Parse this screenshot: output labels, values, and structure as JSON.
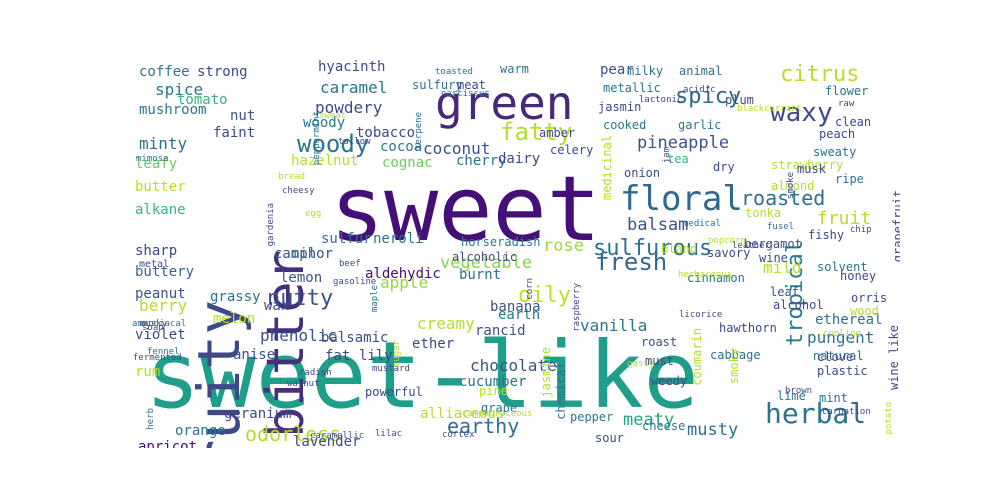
{
  "words": [
    {
      "text": "sweet-like",
      "color": "#1f9e89"
    },
    {
      "text": "sweet",
      "color": "#440f76"
    },
    {
      "text": "fruity",
      "color": "#3e4989"
    },
    {
      "text": "bitter",
      "color": "#46307e"
    },
    {
      "text": "green",
      "color": "#482979"
    },
    {
      "text": "floral",
      "color": "#31688e"
    },
    {
      "text": "herbal",
      "color": "#2c728e"
    },
    {
      "text": "fatty",
      "color": "#b5de2b"
    },
    {
      "text": "waxy",
      "color": "#3e4a89"
    },
    {
      "text": "woody",
      "color": "#2a788e"
    },
    {
      "text": "citrus",
      "color": "#b8de29"
    },
    {
      "text": "spicy",
      "color": "#31688e"
    },
    {
      "text": "fresh",
      "color": "#31688e"
    },
    {
      "text": "nutty",
      "color": "#3b528b"
    },
    {
      "text": "roasted",
      "color": "#2d708e"
    },
    {
      "text": "sulfurous",
      "color": "#2c728e"
    },
    {
      "text": "oily",
      "color": "#c2df23"
    },
    {
      "text": "earthy",
      "color": "#2c728e"
    },
    {
      "text": "odorless",
      "color": "#b5de2b"
    },
    {
      "text": "tropical",
      "color": "#297b8e"
    },
    {
      "text": "pineapple",
      "color": "#3b528b"
    },
    {
      "text": "balsam",
      "color": "#3b528b"
    },
    {
      "text": "fruit",
      "color": "#b5de2b"
    },
    {
      "text": "rose",
      "color": "#9bd93c"
    },
    {
      "text": "vegetable",
      "color": "#84d44b"
    },
    {
      "text": "musty",
      "color": "#2c728e"
    },
    {
      "text": "meaty",
      "color": "#20a386"
    },
    {
      "text": "creamy",
      "color": "#b5de2b"
    },
    {
      "text": "mild",
      "color": "#b5de2b"
    },
    {
      "text": "apple",
      "color": "#95d840"
    },
    {
      "text": "pungent",
      "color": "#2c728e"
    },
    {
      "text": "coconut",
      "color": "#3b528b"
    },
    {
      "text": "caramel",
      "color": "#2a788e"
    },
    {
      "text": "minty",
      "color": "#2c728e"
    },
    {
      "text": "spice",
      "color": "#2a788e"
    },
    {
      "text": "phenolic",
      "color": "#3b528b"
    },
    {
      "text": "berry",
      "color": "#b5de2b"
    },
    {
      "text": "vanilla",
      "color": "#2a788e"
    },
    {
      "text": "ethereal",
      "color": "#2c728e"
    },
    {
      "text": "chocolate",
      "color": "#3b528b"
    },
    {
      "text": "alliaceous",
      "color": "#b5de2b"
    },
    {
      "text": "powdery",
      "color": "#3e4a89"
    },
    {
      "text": "cucumber",
      "color": "#2c728e"
    },
    {
      "text": "hyacinth",
      "color": "#3e4a89"
    },
    {
      "text": "coffee",
      "color": "#2a788e"
    },
    {
      "text": "strong",
      "color": "#3e4a89"
    },
    {
      "text": "mushroom",
      "color": "#2a788e"
    },
    {
      "text": "tomato",
      "color": "#35b779"
    },
    {
      "text": "faint",
      "color": "#3e4a89"
    },
    {
      "text": "nut",
      "color": "#3b528b"
    },
    {
      "text": "hazelnut",
      "color": "#b5de2b"
    },
    {
      "text": "leafy",
      "color": "#6ccd5a"
    },
    {
      "text": "butter",
      "color": "#b5de2b"
    },
    {
      "text": "alkane",
      "color": "#35b779"
    },
    {
      "text": "sharp",
      "color": "#3e4a89"
    },
    {
      "text": "buttery",
      "color": "#31688e"
    },
    {
      "text": "grassy",
      "color": "#2c728e"
    },
    {
      "text": "peanut",
      "color": "#3b528b"
    },
    {
      "text": "melon",
      "color": "#b5de2b"
    },
    {
      "text": "violet",
      "color": "#3e4a89"
    },
    {
      "text": "anise",
      "color": "#3b528b"
    },
    {
      "text": "rum",
      "color": "#b5de2b"
    },
    {
      "text": "apricot",
      "color": "#440f76"
    },
    {
      "text": "orange",
      "color": "#2a788e"
    },
    {
      "text": "geranium",
      "color": "#3e4a89"
    },
    {
      "text": "lavender",
      "color": "#3e4a89"
    },
    {
      "text": "woody",
      "color": "#2a788e"
    },
    {
      "text": "cognac",
      "color": "#6ccd5a"
    },
    {
      "text": "cocoa",
      "color": "#2a788e"
    },
    {
      "text": "tobacco",
      "color": "#3e4a89"
    },
    {
      "text": "camphor",
      "color": "#3b528b"
    },
    {
      "text": "oil",
      "color": "#2a788e"
    },
    {
      "text": "sulfur",
      "color": "#2c728e"
    },
    {
      "text": "neroli",
      "color": "#2c728e"
    },
    {
      "text": "lemon",
      "color": "#3b528b"
    },
    {
      "text": "wax",
      "color": "#3e4a89"
    },
    {
      "text": "aldehydic",
      "color": "#440f76"
    },
    {
      "text": "balsamic",
      "color": "#3b528b"
    },
    {
      "text": "fat",
      "color": "#3e4a89"
    },
    {
      "text": "lily",
      "color": "#3e4a89"
    },
    {
      "text": "ether",
      "color": "#3e4a89"
    },
    {
      "text": "rancid",
      "color": "#3b528b"
    },
    {
      "text": "banana",
      "color": "#3b528b"
    },
    {
      "text": "earth",
      "color": "#2a788e"
    },
    {
      "text": "burnt",
      "color": "#2c728e"
    },
    {
      "text": "cherry",
      "color": "#2c728e"
    },
    {
      "text": "dairy",
      "color": "#3e4a89"
    },
    {
      "text": "sulfury",
      "color": "#2c728e"
    },
    {
      "text": "warm",
      "color": "#2a788e"
    },
    {
      "text": "meat",
      "color": "#3e4a89"
    },
    {
      "text": "pear",
      "color": "#3b528b"
    },
    {
      "text": "milky",
      "color": "#2c728e"
    },
    {
      "text": "animal",
      "color": "#2c728e"
    },
    {
      "text": "metallic",
      "color": "#2a788e"
    },
    {
      "text": "jasmin",
      "color": "#3e4a89"
    },
    {
      "text": "plum",
      "color": "#3e4a89"
    },
    {
      "text": "flower",
      "color": "#2c728e"
    },
    {
      "text": "clean",
      "color": "#3e4a89"
    },
    {
      "text": "peach",
      "color": "#3e4a89"
    },
    {
      "text": "cooked",
      "color": "#2a788e"
    },
    {
      "text": "amber",
      "color": "#3e4a89"
    },
    {
      "text": "garlic",
      "color": "#2a788e"
    },
    {
      "text": "sweaty",
      "color": "#2c728e"
    },
    {
      "text": "celery",
      "color": "#3e4a89"
    },
    {
      "text": "medicinal",
      "color": "#b5de2b"
    },
    {
      "text": "tea",
      "color": "#35b779"
    },
    {
      "text": "dry",
      "color": "#3e4a89"
    },
    {
      "text": "strawberry",
      "color": "#b5de2b"
    },
    {
      "text": "musk",
      "color": "#3e4a89"
    },
    {
      "text": "almond",
      "color": "#b5de2b"
    },
    {
      "text": "ripe",
      "color": "#2c728e"
    },
    {
      "text": "onion",
      "color": "#3e4a89"
    },
    {
      "text": "tonka",
      "color": "#b5de2b"
    },
    {
      "text": "fishy",
      "color": "#3e4a89"
    },
    {
      "text": "wine",
      "color": "#3e4a89"
    },
    {
      "text": "solvent",
      "color": "#2c728e"
    },
    {
      "text": "bergamot",
      "color": "#3e4a89"
    },
    {
      "text": "honey",
      "color": "#3e4a89"
    },
    {
      "text": "leaf",
      "color": "#3b528b"
    },
    {
      "text": "alcohol",
      "color": "#3e4a89"
    },
    {
      "text": "orris",
      "color": "#3e4a89"
    },
    {
      "text": "natural",
      "color": "#2c728e"
    },
    {
      "text": "wood",
      "color": "#b5de2b"
    },
    {
      "text": "cinnamon",
      "color": "#2c728e"
    },
    {
      "text": "hawthorn",
      "color": "#3e4a89"
    },
    {
      "text": "cabbage",
      "color": "#2c728e"
    },
    {
      "text": "clove",
      "color": "#3e4a89"
    },
    {
      "text": "plastic",
      "color": "#3e4a89"
    },
    {
      "text": "mint",
      "color": "#2c728e"
    },
    {
      "text": "lime",
      "color": "#2a788e"
    },
    {
      "text": "roast",
      "color": "#3e4a89"
    },
    {
      "text": "must",
      "color": "#3e4a89"
    },
    {
      "text": "weedy",
      "color": "#3e4a89"
    },
    {
      "text": "bland",
      "color": "#b5de2b"
    },
    {
      "text": "savory",
      "color": "#3e4a89"
    },
    {
      "text": "horseradish",
      "color": "#2a788e"
    },
    {
      "text": "alcoholic",
      "color": "#3e4a89"
    },
    {
      "text": "powerful",
      "color": "#3e4a89"
    },
    {
      "text": "pine",
      "color": "#b5de2b"
    },
    {
      "text": "grape",
      "color": "#2c728e"
    },
    {
      "text": "pepper",
      "color": "#2a788e"
    },
    {
      "text": "cheese",
      "color": "#2c728e"
    },
    {
      "text": "sour",
      "color": "#3e4a89"
    },
    {
      "text": "gassy",
      "color": "#b5de2b"
    },
    {
      "text": "sugar",
      "color": "#b5de2b"
    },
    {
      "text": "mustard",
      "color": "#3e4a89"
    },
    {
      "text": "lilac",
      "color": "#3e4a89"
    },
    {
      "text": "cortex",
      "color": "#3e4a89"
    },
    {
      "text": "camphoraceous",
      "color": "#b5de2b"
    },
    {
      "text": "caramellic",
      "color": "#3e4a89"
    },
    {
      "text": "walnut",
      "color": "#3e4a89"
    },
    {
      "text": "radish",
      "color": "#3e4a89"
    },
    {
      "text": "fennel",
      "color": "#2c728e"
    },
    {
      "text": "soap",
      "color": "#3e4a89"
    },
    {
      "text": "metal",
      "color": "#3e4a89"
    },
    {
      "text": "musky",
      "color": "#3e4a89"
    },
    {
      "text": "gasoline",
      "color": "#3e4a89"
    },
    {
      "text": "beef",
      "color": "#3e4a89"
    },
    {
      "text": "ammoniacal",
      "color": "#2c728e"
    },
    {
      "text": "fermented",
      "color": "#3e4a89"
    },
    {
      "text": "licorice",
      "color": "#3e4a89"
    },
    {
      "text": "cooling",
      "color": "#b5de2b"
    },
    {
      "text": "brown",
      "color": "#3e4a89"
    },
    {
      "text": "carnation",
      "color": "#3e4a89"
    },
    {
      "text": "medicine",
      "color": "#b5de2b"
    },
    {
      "text": "herbaceous",
      "color": "#b5de2b"
    },
    {
      "text": "popcorn",
      "color": "#b5de2b"
    },
    {
      "text": "leather",
      "color": "#3e4a89"
    },
    {
      "text": "medical",
      "color": "#2c728e"
    },
    {
      "text": "fusel",
      "color": "#2c728e"
    },
    {
      "text": "chip",
      "color": "#3e4a89"
    },
    {
      "text": "lactonic",
      "color": "#3e4a89"
    },
    {
      "text": "acidic",
      "color": "#3e4a89"
    },
    {
      "text": "raw",
      "color": "#3e4a89"
    },
    {
      "text": "blackcurrant",
      "color": "#b5de2b"
    },
    {
      "text": "toasted",
      "color": "#2c728e"
    },
    {
      "text": "narcissus",
      "color": "#2c728e"
    },
    {
      "text": "sweat",
      "color": "#b5de2b"
    },
    {
      "text": "tallow",
      "color": "#3e4a89"
    },
    {
      "text": "mimosa",
      "color": "#2c728e"
    },
    {
      "text": "bread",
      "color": "#b5de2b"
    },
    {
      "text": "egg",
      "color": "#b5de2b"
    },
    {
      "text": "cheesy",
      "color": "#3e4a89"
    },
    {
      "text": "gardenia",
      "color": "#3e4a89"
    },
    {
      "text": "peppermint",
      "color": "#2c728e"
    },
    {
      "text": "terpene",
      "color": "#2c728e"
    },
    {
      "text": "jam",
      "color": "#3e4a89"
    },
    {
      "text": "smoke",
      "color": "#3e4a89"
    },
    {
      "text": "smoky",
      "color": "#b5de2b"
    },
    {
      "text": "coumarin",
      "color": "#b5de2b"
    },
    {
      "text": "chemical",
      "color": "#2c728e"
    },
    {
      "text": "jasmine",
      "color": "#b5de2b"
    },
    {
      "text": "raspberry",
      "color": "#3e4a89"
    },
    {
      "text": "corn",
      "color": "#3e4a89"
    },
    {
      "text": "maple",
      "color": "#2c728e"
    },
    {
      "text": "herb",
      "color": "#2c728e"
    },
    {
      "text": "wine_like",
      "color": "#3e4a89"
    },
    {
      "text": "grapefruit",
      "color": "#3e4a89"
    },
    {
      "text": "potato",
      "color": "#b5de2b"
    },
    {
      "text": "anisic",
      "color": "#2c728e"
    }
  ]
}
